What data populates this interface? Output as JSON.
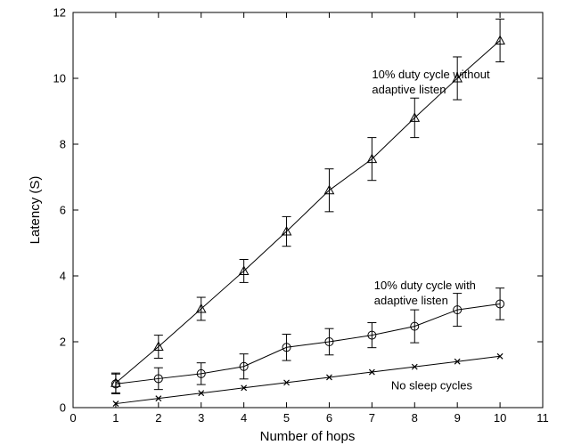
{
  "chart_data": {
    "type": "line",
    "title": "",
    "xlabel": "Number of hops",
    "ylabel": "Latency (S)",
    "xlim": [
      0,
      11
    ],
    "ylim": [
      0,
      12
    ],
    "xticks": [
      "0",
      "1",
      "2",
      "3",
      "4",
      "5",
      "6",
      "7",
      "8",
      "9",
      "10",
      "11"
    ],
    "yticks": [
      "0",
      "2",
      "4",
      "6",
      "8",
      "10",
      "12"
    ],
    "grid": false,
    "series": [
      {
        "marker": "triangle",
        "x": [
          1,
          2,
          3,
          4,
          5,
          6,
          7,
          8,
          9,
          10
        ],
        "y": [
          0.75,
          1.85,
          3.0,
          4.15,
          5.35,
          6.6,
          7.55,
          8.8,
          10.0,
          11.15
        ],
        "err": [
          0.3,
          0.35,
          0.35,
          0.35,
          0.45,
          0.65,
          0.65,
          0.6,
          0.65,
          0.65
        ]
      },
      {
        "marker": "circle",
        "x": [
          1,
          2,
          3,
          4,
          5,
          6,
          7,
          8,
          9,
          10
        ],
        "y": [
          0.72,
          0.88,
          1.03,
          1.25,
          1.83,
          2.0,
          2.2,
          2.47,
          2.97,
          3.15
        ],
        "err": [
          0.3,
          0.33,
          0.33,
          0.38,
          0.4,
          0.4,
          0.38,
          0.5,
          0.5,
          0.48
        ]
      },
      {
        "marker": "x",
        "x": [
          1,
          2,
          3,
          4,
          5,
          6,
          7,
          8,
          9,
          10
        ],
        "y": [
          0.12,
          0.28,
          0.44,
          0.6,
          0.76,
          0.92,
          1.08,
          1.24,
          1.4,
          1.56
        ],
        "err": null
      }
    ],
    "annotations": [
      {
        "lines": [
          "10% duty cycle without",
          "adaptive listen"
        ],
        "at": [
          7.0,
          10.0
        ],
        "series": 0
      },
      {
        "lines": [
          "10% duty cycle with",
          "adaptive listen"
        ],
        "at": [
          7.05,
          3.6
        ],
        "series": 1
      },
      {
        "lines": [
          "No sleep cycles"
        ],
        "at": [
          7.45,
          0.55
        ],
        "series": 2
      }
    ]
  }
}
